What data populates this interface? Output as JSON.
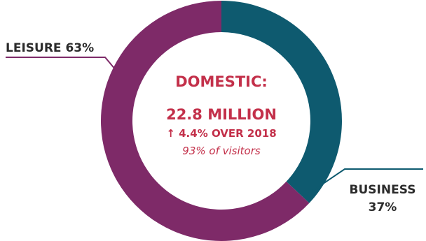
{
  "chart_data": {
    "type": "pie",
    "title": "DOMESTIC:",
    "center": {
      "value": "22.8 MILLION",
      "change": "↑ 4.4% OVER 2018",
      "note": "93% of visitors"
    },
    "categories": [
      "BUSINESS",
      "LEISURE"
    ],
    "values": [
      37,
      63
    ],
    "labels": [
      "BUSINESS",
      "LEISURE 63%"
    ],
    "label_values": [
      "37%",
      ""
    ],
    "colors": [
      "#0e5a6f",
      "#7e2a68"
    ],
    "accent_text": "#c3304a",
    "label_color": "#2b2b2b"
  }
}
